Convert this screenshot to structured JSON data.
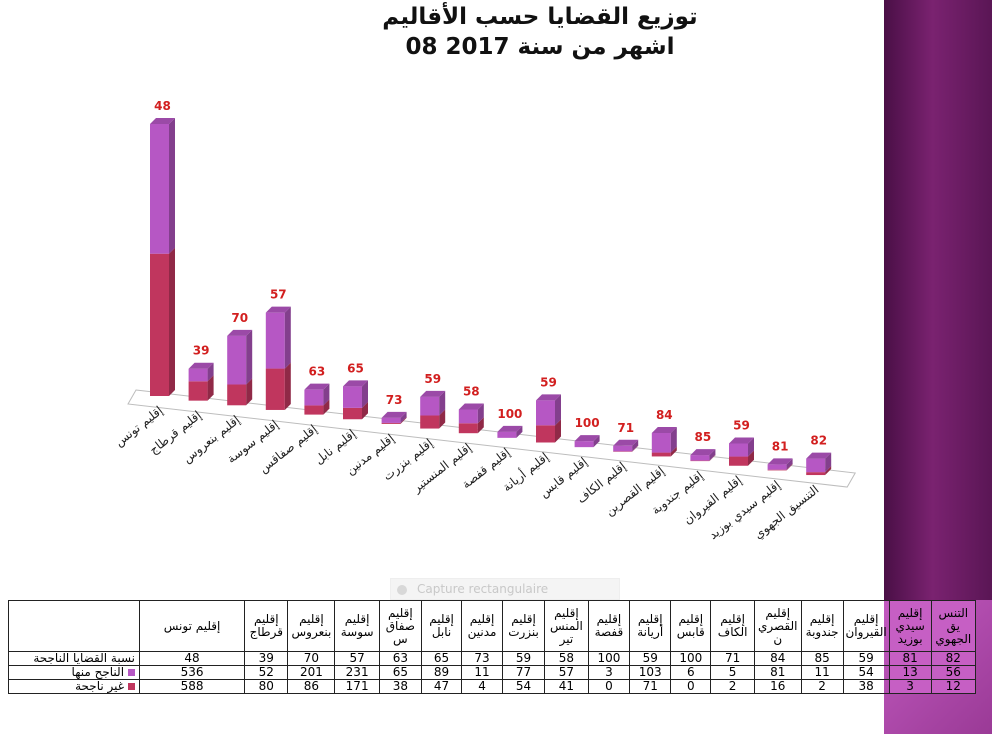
{
  "chart_data": {
    "type": "bar",
    "stacked": true,
    "title": "توزيع القضايا حسب الأقاليم",
    "subtitle": "08 اشهر من سنة 2017",
    "categories": [
      "إقليم تونس",
      "إقليم قرطاج",
      "إقليم بنعروس",
      "إقليم سوسة",
      "إقليم صفاقس",
      "إقليم نابل",
      "إقليم مدنين",
      "إقليم بنزرت",
      "إقليم المنستير",
      "إقليم قفصة",
      "إقليم أريانة",
      "إقليم قابس",
      "إقليم الكاف",
      "إقليم القصرين",
      "إقليم جندوبة",
      "إقليم القيروان",
      "إقليم سيدي بوزيد",
      "التنسيق الجهوي"
    ],
    "table_headers": [
      "إقليم تونس",
      "إقليم قرطاج",
      "إقليم بنعروس",
      "إقليم سوسة",
      "إقليم صفاق س",
      "إقليم نابل",
      "إقليم مدنين",
      "إقليم بنزرت",
      "إقليم المنس تير",
      "إقليم قفصة",
      "إقليم أريانة",
      "إقليم قابس",
      "إقليم الكاف",
      "إقليم القصري ن",
      "إقليم جندوبة",
      "إقليم القيروان",
      "إقليم سيدي بوزيد",
      "التنس يق الجهوي"
    ],
    "data_labels": [
      48,
      39,
      70,
      57,
      63,
      65,
      73,
      59,
      58,
      100,
      59,
      100,
      71,
      84,
      85,
      59,
      81,
      82
    ],
    "series": [
      {
        "name": "نسبة القضايا الناجحة",
        "values": [
          48,
          39,
          70,
          57,
          63,
          65,
          73,
          59,
          58,
          100,
          59,
          100,
          71,
          84,
          85,
          59,
          81,
          82
        ]
      },
      {
        "name": "الناجح منها",
        "values": [
          536,
          52,
          201,
          231,
          65,
          89,
          11,
          77,
          57,
          3,
          103,
          6,
          5,
          81,
          11,
          54,
          13,
          56
        ],
        "color": "#b657c4"
      },
      {
        "name": "غير ناجحة",
        "values": [
          588,
          80,
          86,
          171,
          38,
          47,
          4,
          54,
          41,
          0,
          71,
          0,
          2,
          16,
          2,
          38,
          3,
          12
        ],
        "color": "#c0365e"
      }
    ],
    "legend_position": "bottom-table",
    "grid": false
  },
  "overlay": {
    "capture_label": "Capture rectangulaire"
  },
  "colors": {
    "data_label": "#d21f1f",
    "success": "#b657c4",
    "fail": "#c0365e",
    "side_panel": "#6a1b63"
  }
}
